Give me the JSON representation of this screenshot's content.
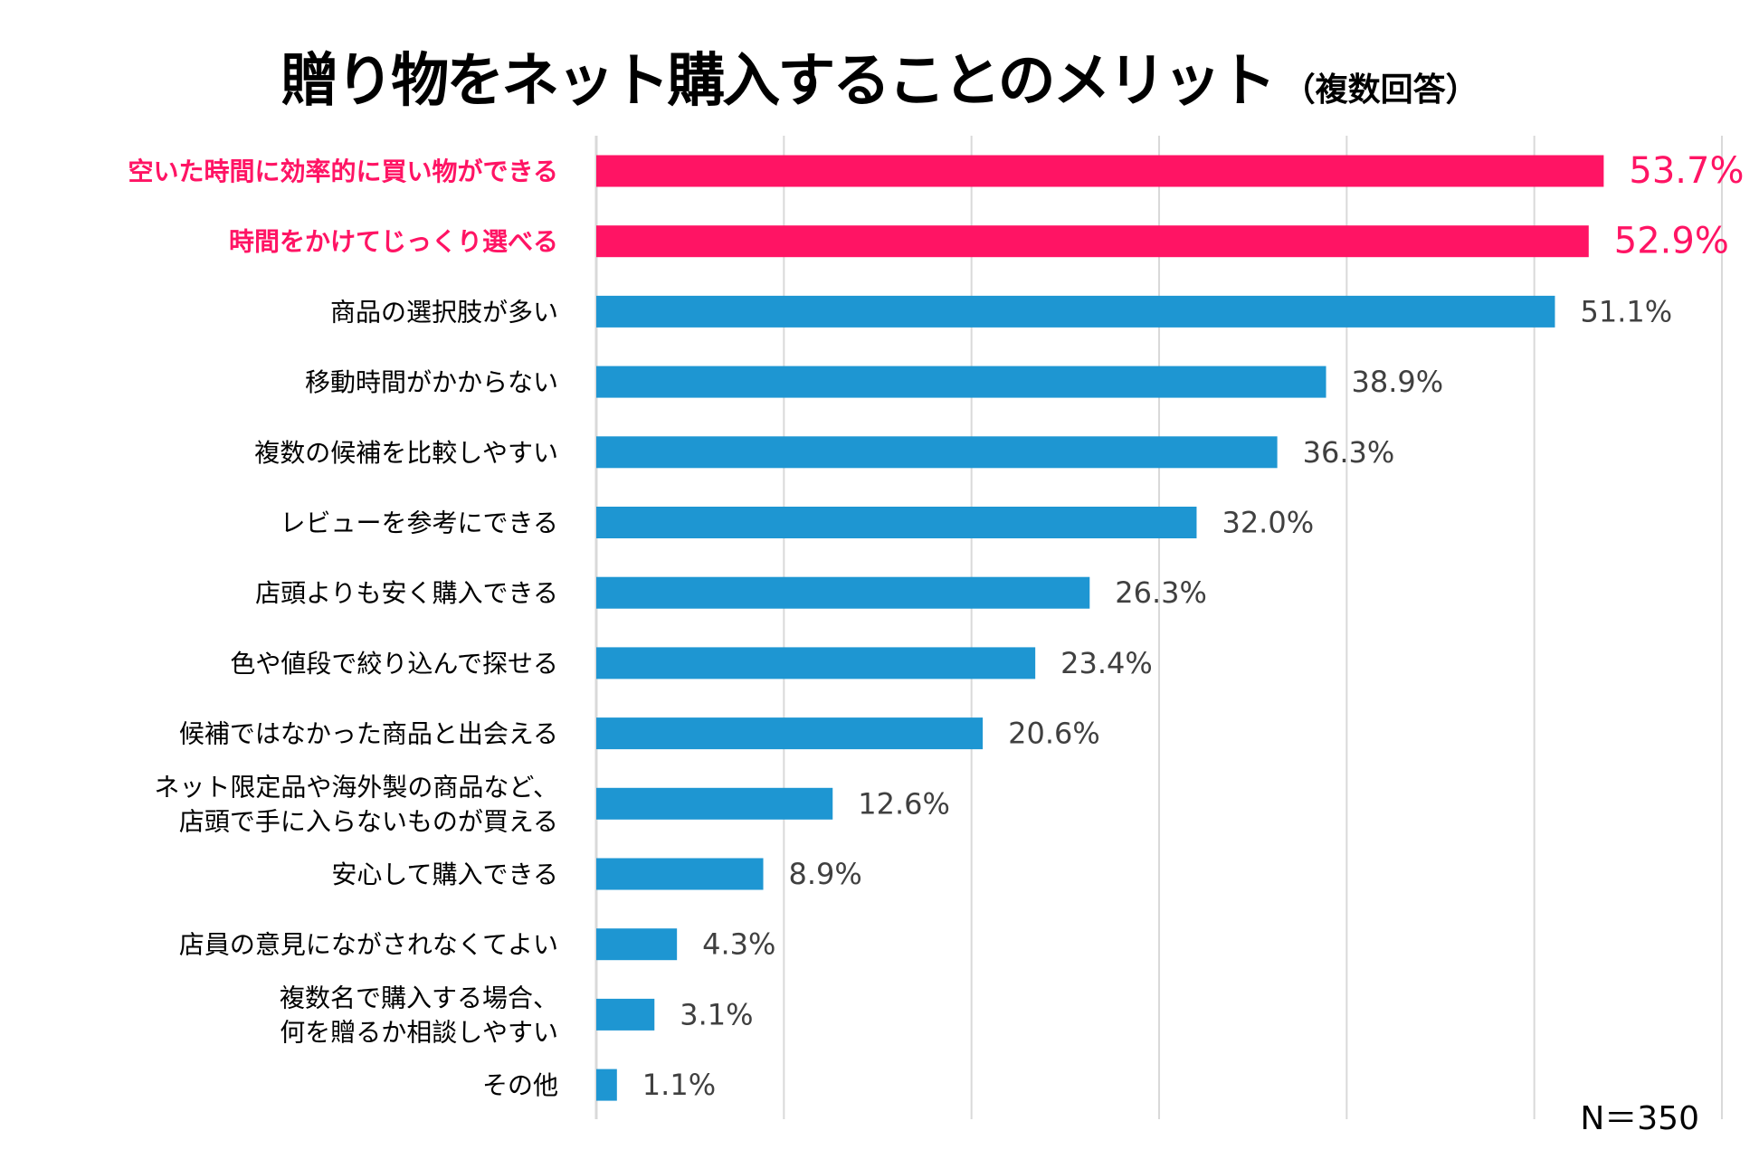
{
  "chart_data": {
    "type": "bar",
    "orientation": "horizontal",
    "title": "贈り物をネット購入することのメリット",
    "subtitle": "（複数回答）",
    "categories": [
      "空いた時間に効率的に買い物ができる",
      "時間をかけてじっくり選べる",
      "商品の選択肢が多い",
      "移動時間がかからない",
      "複数の候補を比較しやすい",
      "レビューを参考にできる",
      "店頭よりも安く購入できる",
      "色や値段で絞り込んで探せる",
      "候補ではなかった商品と出会える",
      "ネット限定品や海外製の商品など、\n店頭で手に入らないものが買える",
      "安心して購入できる",
      "店員の意見にながされなくてよい",
      "複数名で購入する場合、\n何を贈るか相談しやすい",
      "その他"
    ],
    "values": [
      53.7,
      52.9,
      51.1,
      38.9,
      36.3,
      32.0,
      26.3,
      23.4,
      20.6,
      12.6,
      8.9,
      4.3,
      3.1,
      1.1
    ],
    "value_labels": [
      "53.7%",
      "52.9%",
      "51.1%",
      "38.9%",
      "36.3%",
      "32.0%",
      "26.3%",
      "23.4%",
      "20.6%",
      "12.6%",
      "8.9%",
      "4.3%",
      "3.1%",
      "1.1%"
    ],
    "highlighted": [
      true,
      true,
      false,
      false,
      false,
      false,
      false,
      false,
      false,
      false,
      false,
      false,
      false,
      false
    ],
    "xlim": [
      0,
      60
    ],
    "grid_step": 10,
    "grid": true,
    "xlabel": "",
    "ylabel": "",
    "note": "N＝350",
    "colors": {
      "highlight": "#ff1464",
      "bar": "#1e96d2",
      "grid": "#d9d9d9",
      "label": "#000000",
      "value": "#404040"
    }
  }
}
